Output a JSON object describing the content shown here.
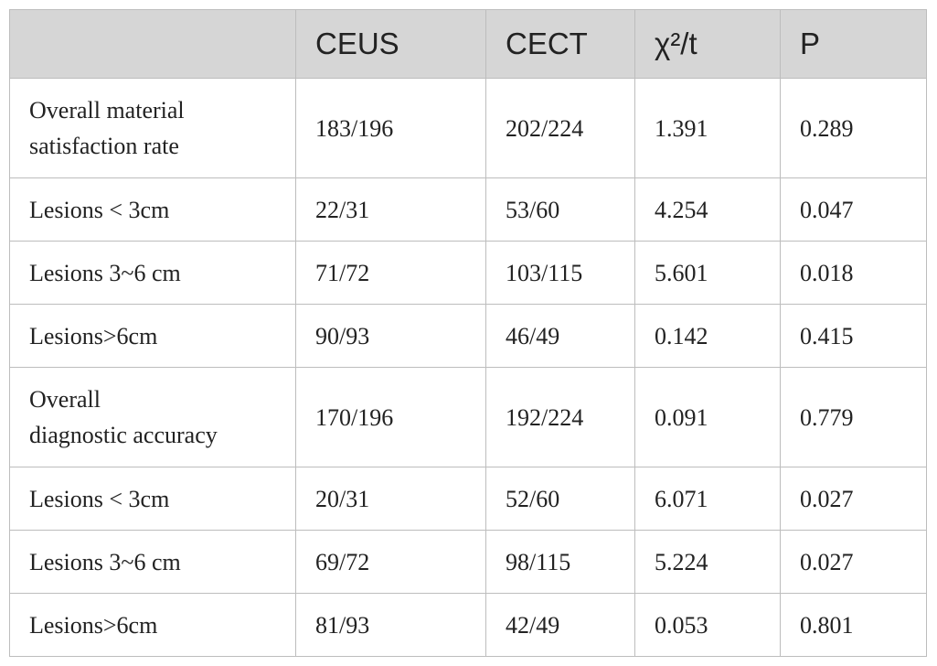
{
  "table": {
    "header": [
      "",
      "CEUS",
      "CECT",
      "χ²/t",
      "P"
    ],
    "rows": [
      [
        "Overall material\nsatisfaction rate",
        "183/196",
        "202/224",
        "1.391",
        "0.289"
      ],
      [
        "Lesions < 3cm",
        "22/31",
        "53/60",
        "4.254",
        "0.047"
      ],
      [
        "Lesions 3~6 cm",
        "71/72",
        "103/115",
        "5.601",
        "0.018"
      ],
      [
        "Lesions>6cm",
        "90/93",
        "46/49",
        "0.142",
        "0.415"
      ],
      [
        "Overall\ndiagnostic accuracy",
        "170/196",
        "192/224",
        "0.091",
        "0.779"
      ],
      [
        "Lesions < 3cm",
        "20/31",
        "52/60",
        "6.071",
        "0.027"
      ],
      [
        "Lesions 3~6 cm",
        "69/72",
        "98/115",
        "5.224",
        "0.027"
      ],
      [
        "Lesions>6cm",
        "81/93",
        "42/49",
        "0.053",
        "0.801"
      ]
    ]
  }
}
